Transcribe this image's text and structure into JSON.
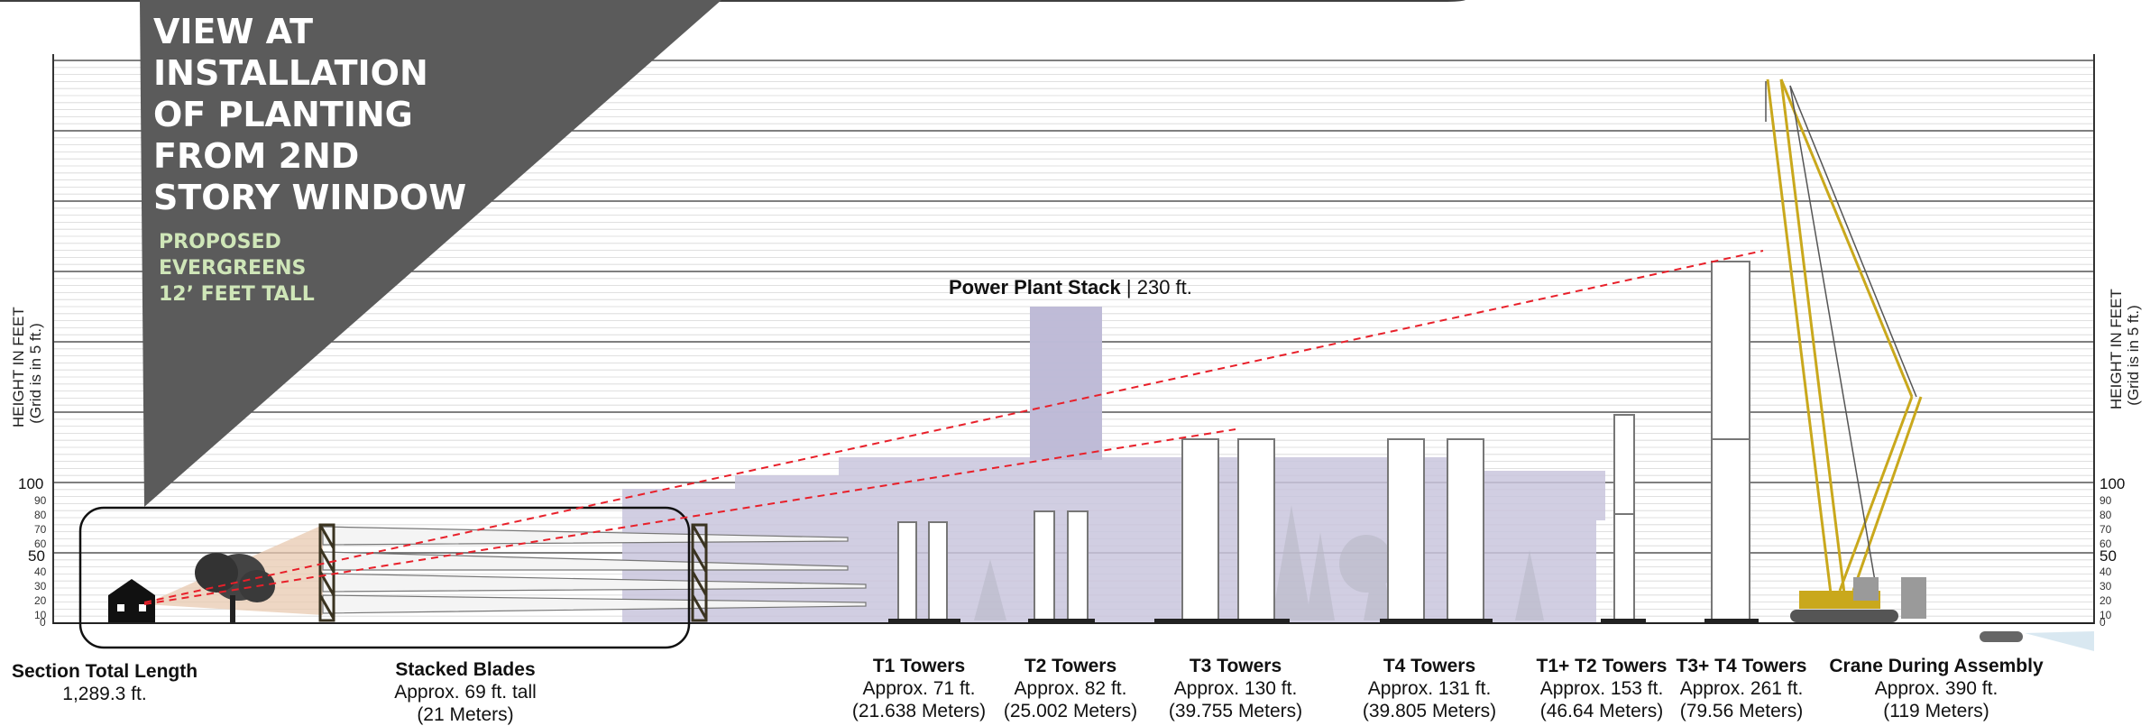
{
  "banner": {
    "title_lines": [
      "VIEW AT",
      "INSTALLATION",
      "OF PLANTING",
      "FROM 2ND",
      "STORY WINDOW"
    ],
    "subtitle_lines": [
      "PROPOSED",
      "EVERGREENS",
      "12’ FEET TALL"
    ]
  },
  "axis": {
    "title_line1": "HEIGHT IN FEET",
    "title_line2": "(Grid is in 5 ft.)",
    "major_ticks": [
      "100",
      "50",
      "0"
    ],
    "minor_ticks": [
      "90",
      "80",
      "70",
      "60",
      "40",
      "30",
      "20",
      "10"
    ]
  },
  "power_plant_stack": {
    "name": "Power Plant Stack",
    "separator": "|",
    "height": "230 ft."
  },
  "section_length": {
    "title": "Section Total Length",
    "value": "1,289.3 ft."
  },
  "items": [
    {
      "title": "Stacked Blades",
      "line1": "Approx. 69 ft. tall",
      "line2": "(21 Meters)"
    },
    {
      "title": "T1 Towers",
      "line1": "Approx. 71 ft.",
      "line2": "(21.638 Meters)"
    },
    {
      "title": "T2 Towers",
      "line1": "Approx. 82 ft.",
      "line2": "(25.002 Meters)"
    },
    {
      "title": "T3 Towers",
      "line1": "Approx. 130 ft.",
      "line2": "(39.755 Meters)"
    },
    {
      "title": "T4 Towers",
      "line1": "Approx. 131 ft.",
      "line2": "(39.805 Meters)"
    },
    {
      "title": "T1+ T2 Towers",
      "line1": "Approx. 153 ft.",
      "line2": "(46.64 Meters)"
    },
    {
      "title": "T3+ T4 Towers",
      "line1": "Approx. 261 ft.",
      "line2": "(79.56 Meters)"
    },
    {
      "title": "Crane During Assembly",
      "line1": "Approx. 390 ft.",
      "line2": "(119 Meters)"
    }
  ],
  "colors": {
    "banner": "#5b5b5b",
    "banner_subtitle": "#cfe6b8",
    "building_mass": "#c9c6dd",
    "sightline": "#e8202a",
    "crane": "#c9a81c",
    "view_cone": "#e8c9b0"
  }
}
